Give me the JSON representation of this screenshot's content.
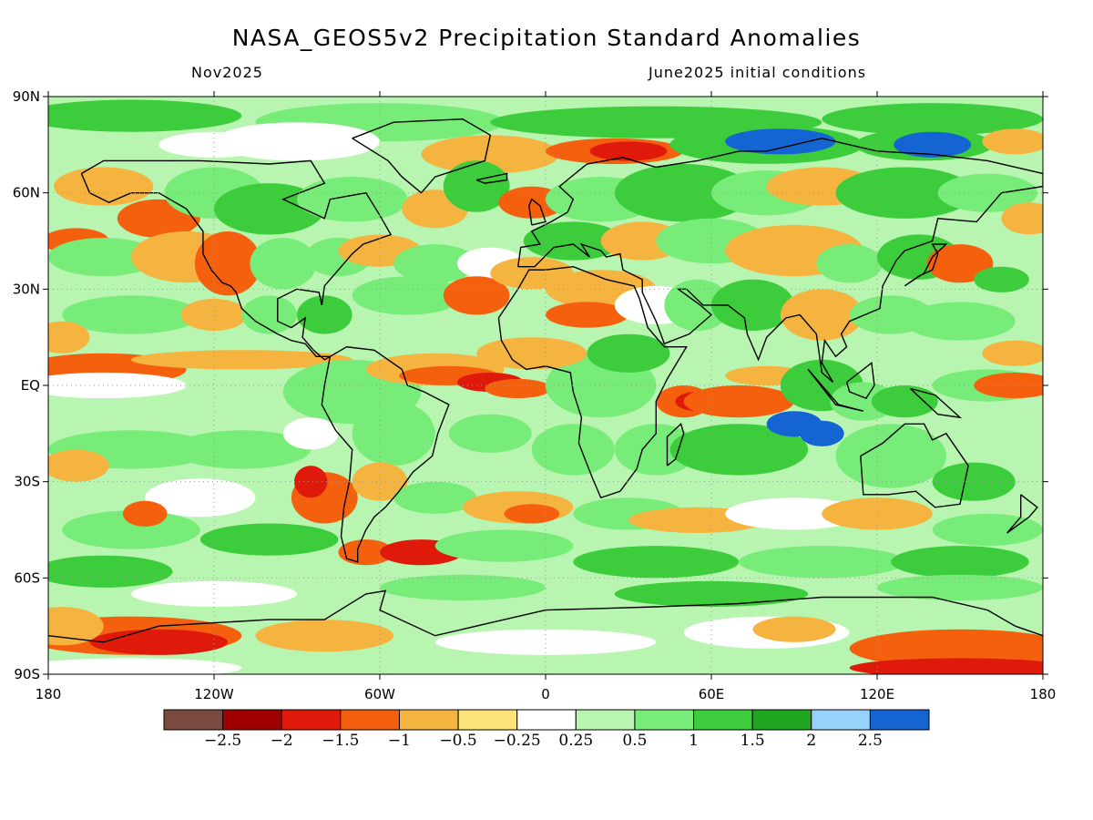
{
  "title": "NASA_GEOS5v2 Precipitation Standard Anomalies",
  "subtitle_left": "Nov2025",
  "subtitle_right": "June2025 initial conditions",
  "lat_labels": [
    "90N",
    "60N",
    "30N",
    "EQ",
    "30S",
    "60S",
    "90S"
  ],
  "lon_labels": [
    "180",
    "120W",
    "60W",
    "0",
    "60E",
    "120E",
    "180"
  ],
  "colorbar": {
    "colors": [
      "#7a4a40",
      "#a00000",
      "#e01a0a",
      "#f5600f",
      "#f5b440",
      "#fbe37a",
      "#ffffff",
      "#b8f5b0",
      "#78ec78",
      "#3ccc3c",
      "#1fa51f",
      "#96d2fa",
      "#1464d2"
    ],
    "labels": [
      "−2.5",
      "−2",
      "−1.5",
      "−1",
      "−0.5",
      "−0.25",
      "0.25",
      "0.5",
      "1",
      "1.5",
      "2",
      "2.5"
    ]
  },
  "legend_colors": {
    "strong_dry": "#e01a0a",
    "dry": "#f5600f",
    "moderate_dry": "#f5b440",
    "neutral": "#ffffff",
    "wet": "#78ec78",
    "very_wet": "#3ccc3c",
    "extreme_wet": "#1464d2",
    "coastline": "#000000"
  }
}
